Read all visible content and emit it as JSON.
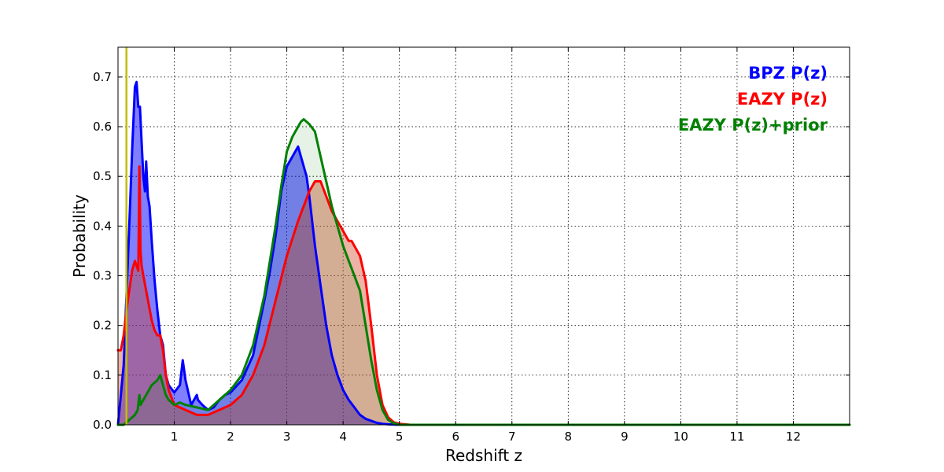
{
  "chart_data": {
    "type": "area",
    "title": "",
    "xlabel": "Redshift z",
    "ylabel": "Probability",
    "xlim": [
      0,
      13
    ],
    "ylim": [
      0,
      0.76
    ],
    "x_ticks": [
      1,
      2,
      3,
      4,
      5,
      6,
      7,
      8,
      9,
      10,
      11,
      12
    ],
    "x_tick_labels": [
      "1",
      "2",
      "3",
      "4",
      "5",
      "6",
      "7",
      "8",
      "9",
      "10",
      "11",
      "12"
    ],
    "y_ticks": [
      0.0,
      0.1,
      0.2,
      0.3,
      0.4,
      0.5,
      0.6,
      0.7
    ],
    "y_tick_labels": [
      "0.0",
      "0.1",
      "0.2",
      "0.3",
      "0.4",
      "0.5",
      "0.6",
      "0.7"
    ],
    "grid": true,
    "legend_position": "top-right",
    "marker_line": {
      "x": 0.15,
      "color": "#bfbf00"
    },
    "series": [
      {
        "name": "BPZ P(z)",
        "color": "#0000ff",
        "fill": "#0000ff",
        "fill_opacity": 0.5,
        "x": [
          0.0,
          0.1,
          0.2,
          0.25,
          0.3,
          0.33,
          0.36,
          0.39,
          0.42,
          0.45,
          0.48,
          0.5,
          0.53,
          0.56,
          0.6,
          0.65,
          0.7,
          0.75,
          0.8,
          0.85,
          0.9,
          1.0,
          1.1,
          1.15,
          1.2,
          1.3,
          1.4,
          1.42,
          1.5,
          1.6,
          1.7,
          1.8,
          1.9,
          2.0,
          2.2,
          2.4,
          2.6,
          2.7,
          2.8,
          2.9,
          3.0,
          3.1,
          3.2,
          3.25,
          3.3,
          3.35,
          3.4,
          3.5,
          3.6,
          3.7,
          3.8,
          3.9,
          4.0,
          4.1,
          4.2,
          4.3,
          4.4,
          4.5,
          4.6,
          4.7,
          4.8,
          5.0,
          6.0,
          8.0,
          10.0,
          12.0,
          13.0
        ],
        "y": [
          0.0,
          0.12,
          0.4,
          0.55,
          0.68,
          0.69,
          0.64,
          0.64,
          0.57,
          0.5,
          0.47,
          0.53,
          0.46,
          0.44,
          0.37,
          0.29,
          0.23,
          0.18,
          0.16,
          0.1,
          0.08,
          0.065,
          0.08,
          0.13,
          0.09,
          0.04,
          0.06,
          0.05,
          0.04,
          0.03,
          0.035,
          0.05,
          0.06,
          0.065,
          0.09,
          0.14,
          0.25,
          0.31,
          0.38,
          0.47,
          0.52,
          0.54,
          0.56,
          0.54,
          0.52,
          0.5,
          0.46,
          0.36,
          0.28,
          0.2,
          0.14,
          0.1,
          0.07,
          0.05,
          0.035,
          0.02,
          0.012,
          0.008,
          0.004,
          0.002,
          0.001,
          0.0,
          0.0,
          0.0,
          0.0,
          0.0,
          0.0
        ]
      },
      {
        "name": "EAZY P(z)",
        "color": "#ff0000",
        "fill": "#d04020",
        "fill_opacity": 0.4,
        "x": [
          0.0,
          0.05,
          0.1,
          0.15,
          0.2,
          0.25,
          0.3,
          0.33,
          0.36,
          0.38,
          0.39,
          0.4,
          0.42,
          0.45,
          0.5,
          0.55,
          0.6,
          0.65,
          0.7,
          0.75,
          0.8,
          0.85,
          0.9,
          1.0,
          1.2,
          1.4,
          1.6,
          1.8,
          2.0,
          2.2,
          2.4,
          2.6,
          2.8,
          3.0,
          3.2,
          3.4,
          3.5,
          3.6,
          3.7,
          3.8,
          3.9,
          4.0,
          4.1,
          4.15,
          4.2,
          4.3,
          4.4,
          4.5,
          4.6,
          4.7,
          4.8,
          4.9,
          5.0,
          5.2,
          6.0,
          8.0,
          10.0,
          12.0,
          13.0
        ],
        "y": [
          0.15,
          0.15,
          0.18,
          0.23,
          0.27,
          0.31,
          0.33,
          0.32,
          0.31,
          0.52,
          0.45,
          0.35,
          0.32,
          0.3,
          0.27,
          0.24,
          0.21,
          0.19,
          0.18,
          0.18,
          0.15,
          0.1,
          0.07,
          0.04,
          0.03,
          0.02,
          0.02,
          0.03,
          0.04,
          0.06,
          0.1,
          0.16,
          0.25,
          0.34,
          0.41,
          0.47,
          0.49,
          0.49,
          0.46,
          0.43,
          0.41,
          0.39,
          0.37,
          0.37,
          0.36,
          0.34,
          0.29,
          0.2,
          0.1,
          0.04,
          0.015,
          0.005,
          0.002,
          0.0,
          0.0,
          0.0,
          0.0,
          0.0,
          0.0
        ]
      },
      {
        "name": "EAZY P(z)+prior",
        "color": "#008000",
        "fill": "#008000",
        "fill_opacity": 0.1,
        "x": [
          0.0,
          0.1,
          0.2,
          0.3,
          0.35,
          0.38,
          0.4,
          0.45,
          0.5,
          0.6,
          0.7,
          0.75,
          0.8,
          0.85,
          0.9,
          1.0,
          1.1,
          1.2,
          1.4,
          1.6,
          1.8,
          2.0,
          2.2,
          2.4,
          2.6,
          2.8,
          2.9,
          3.0,
          3.1,
          3.2,
          3.25,
          3.3,
          3.35,
          3.4,
          3.5,
          3.6,
          3.7,
          3.8,
          3.9,
          4.0,
          4.1,
          4.2,
          4.3,
          4.4,
          4.5,
          4.6,
          4.7,
          4.8,
          4.9,
          5.0,
          6.0,
          8.0,
          10.0,
          12.0,
          13.0
        ],
        "y": [
          0.0,
          0.0,
          0.01,
          0.02,
          0.03,
          0.06,
          0.04,
          0.05,
          0.06,
          0.08,
          0.09,
          0.1,
          0.08,
          0.06,
          0.05,
          0.04,
          0.045,
          0.04,
          0.035,
          0.03,
          0.05,
          0.07,
          0.1,
          0.16,
          0.26,
          0.4,
          0.48,
          0.55,
          0.58,
          0.6,
          0.61,
          0.615,
          0.61,
          0.605,
          0.59,
          0.54,
          0.49,
          0.44,
          0.4,
          0.36,
          0.33,
          0.3,
          0.27,
          0.2,
          0.13,
          0.07,
          0.03,
          0.01,
          0.003,
          0.0,
          0.0,
          0.0,
          0.0,
          0.0,
          0.0
        ]
      }
    ]
  }
}
